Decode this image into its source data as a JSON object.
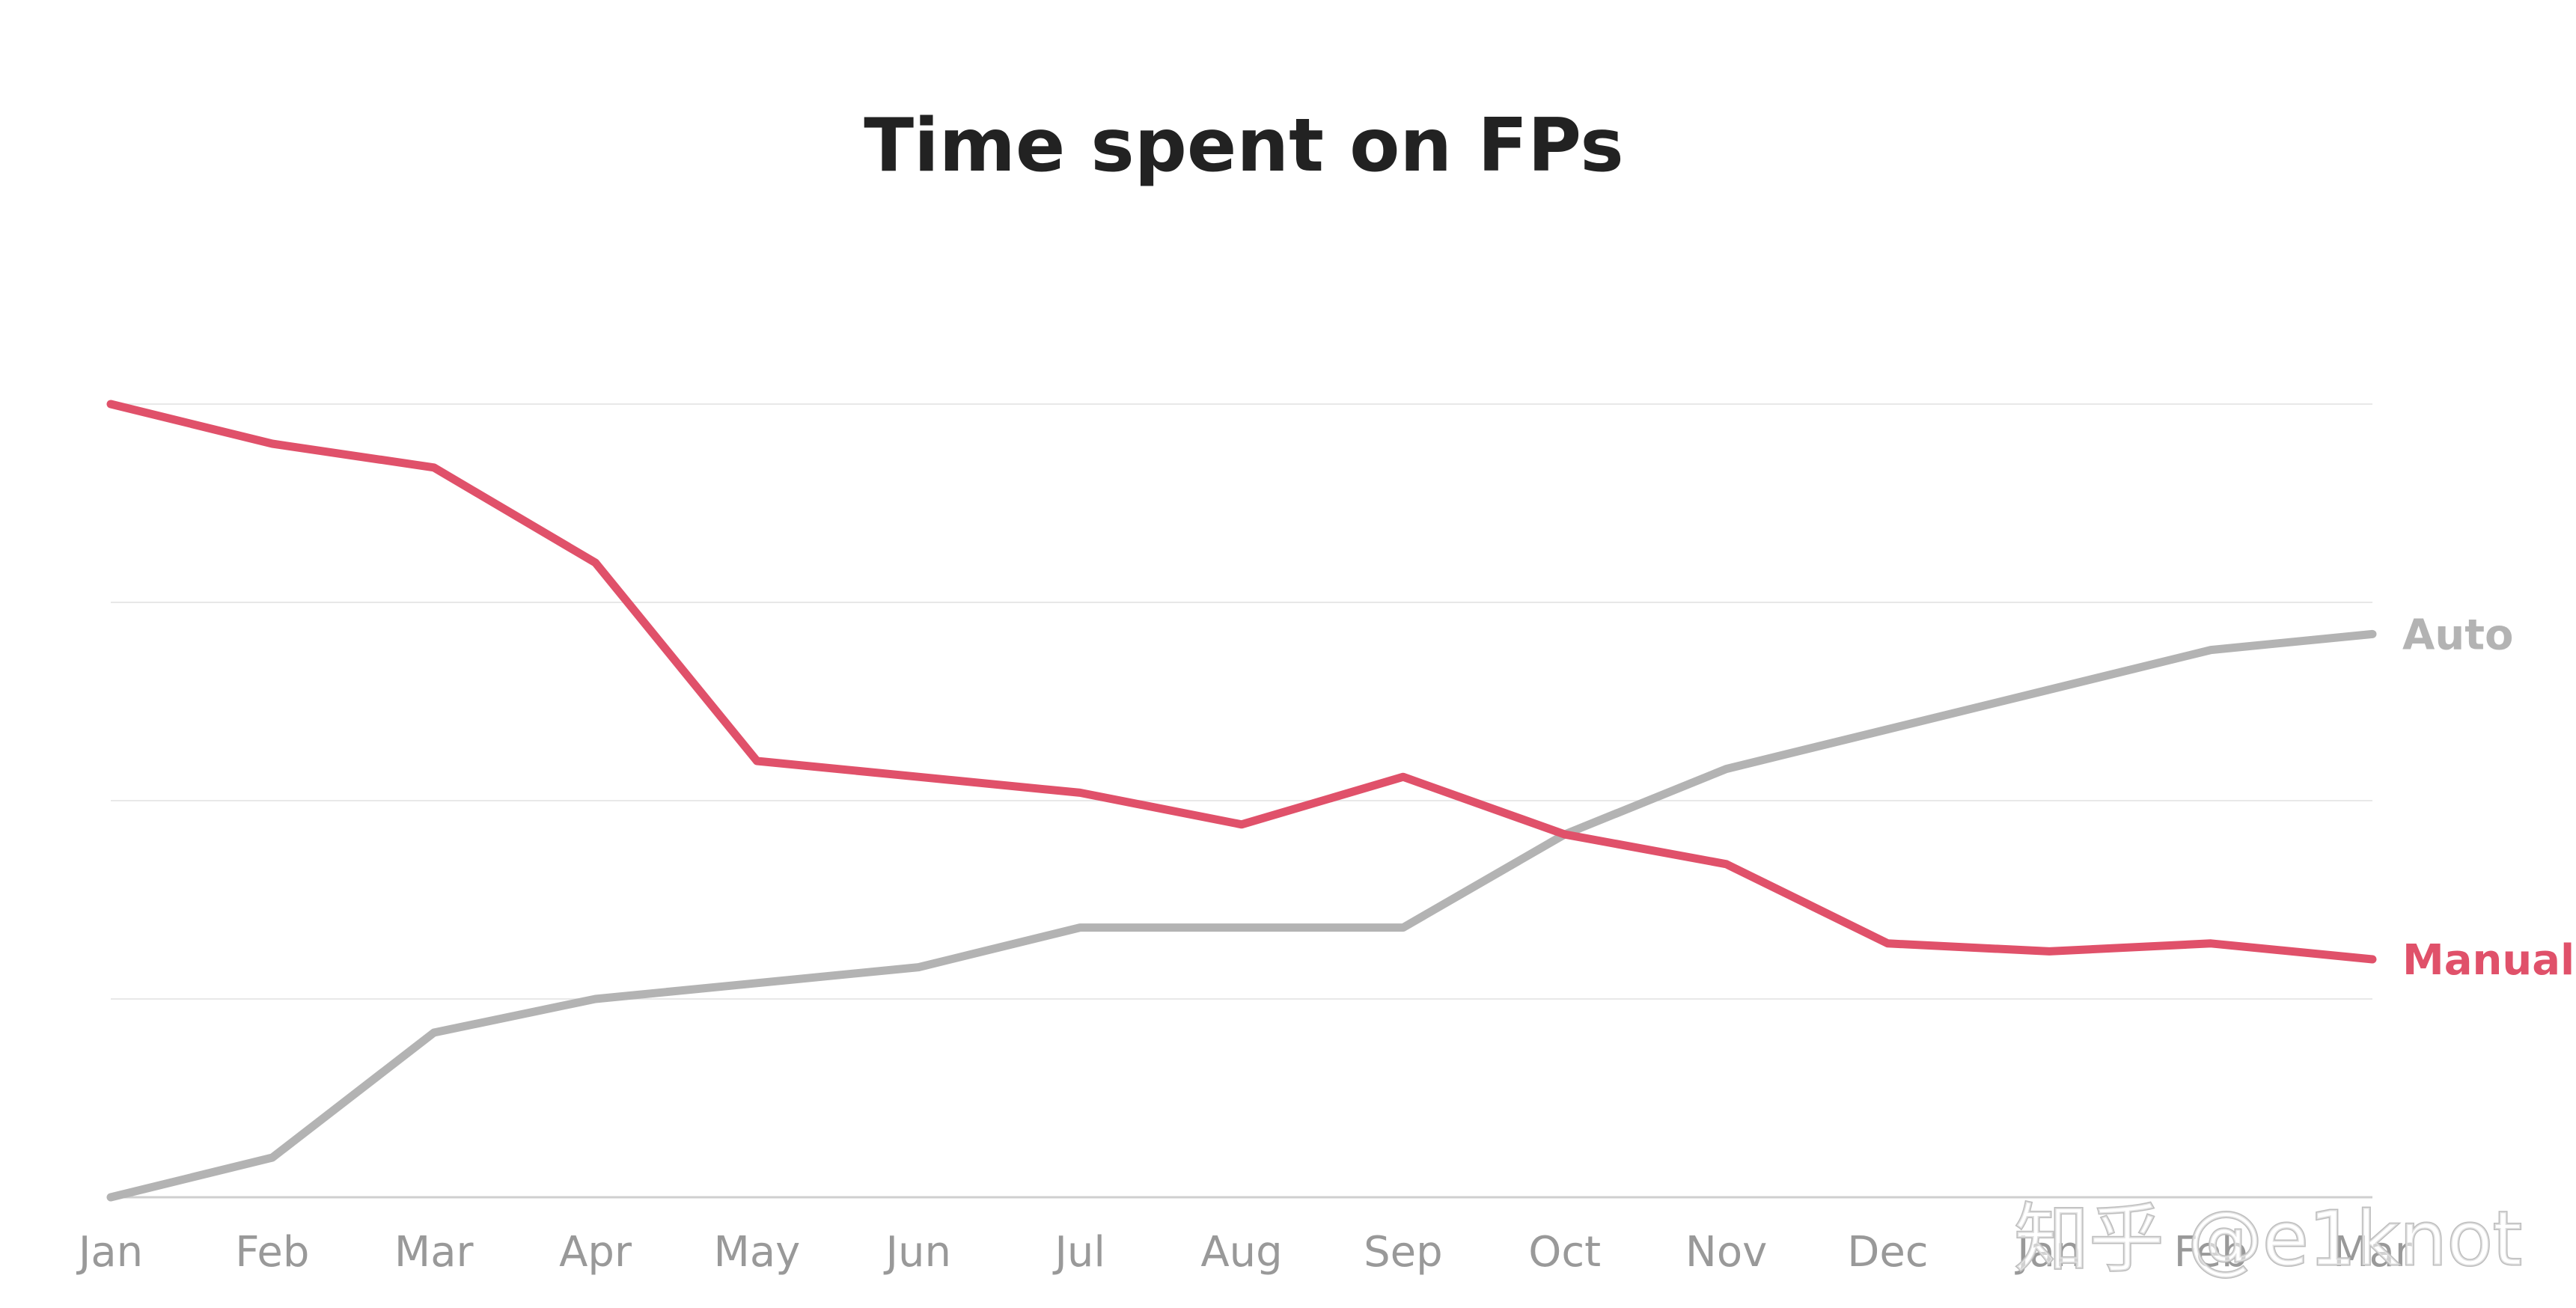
{
  "watermark": "知乎 @e1knot",
  "chart_data": {
    "type": "line",
    "title": "Time spent on FPs",
    "xlabel": "",
    "ylabel": "",
    "categories": [
      "Jan",
      "Feb",
      "Mar",
      "Apr",
      "May",
      "Jun",
      "Jul",
      "Aug",
      "Sep",
      "Oct",
      "Nov",
      "Dec",
      "Jan",
      "Feb",
      "Mar"
    ],
    "ylim": [
      0,
      4
    ],
    "y_ticks_labeled": false,
    "grid": "horizontal",
    "legend": "inline-right",
    "series": [
      {
        "name": "Manual",
        "color": "#e0516a",
        "values": [
          4.0,
          3.8,
          3.68,
          3.2,
          2.2,
          2.12,
          2.04,
          1.88,
          2.12,
          1.83,
          1.68,
          1.28,
          1.24,
          1.28,
          1.2
        ]
      },
      {
        "name": "Auto",
        "color": "#b3b3b3",
        "values": [
          0.0,
          0.2,
          0.83,
          1.0,
          1.08,
          1.16,
          1.36,
          1.36,
          1.36,
          1.83,
          2.16,
          2.36,
          2.56,
          2.76,
          2.84
        ]
      }
    ]
  }
}
